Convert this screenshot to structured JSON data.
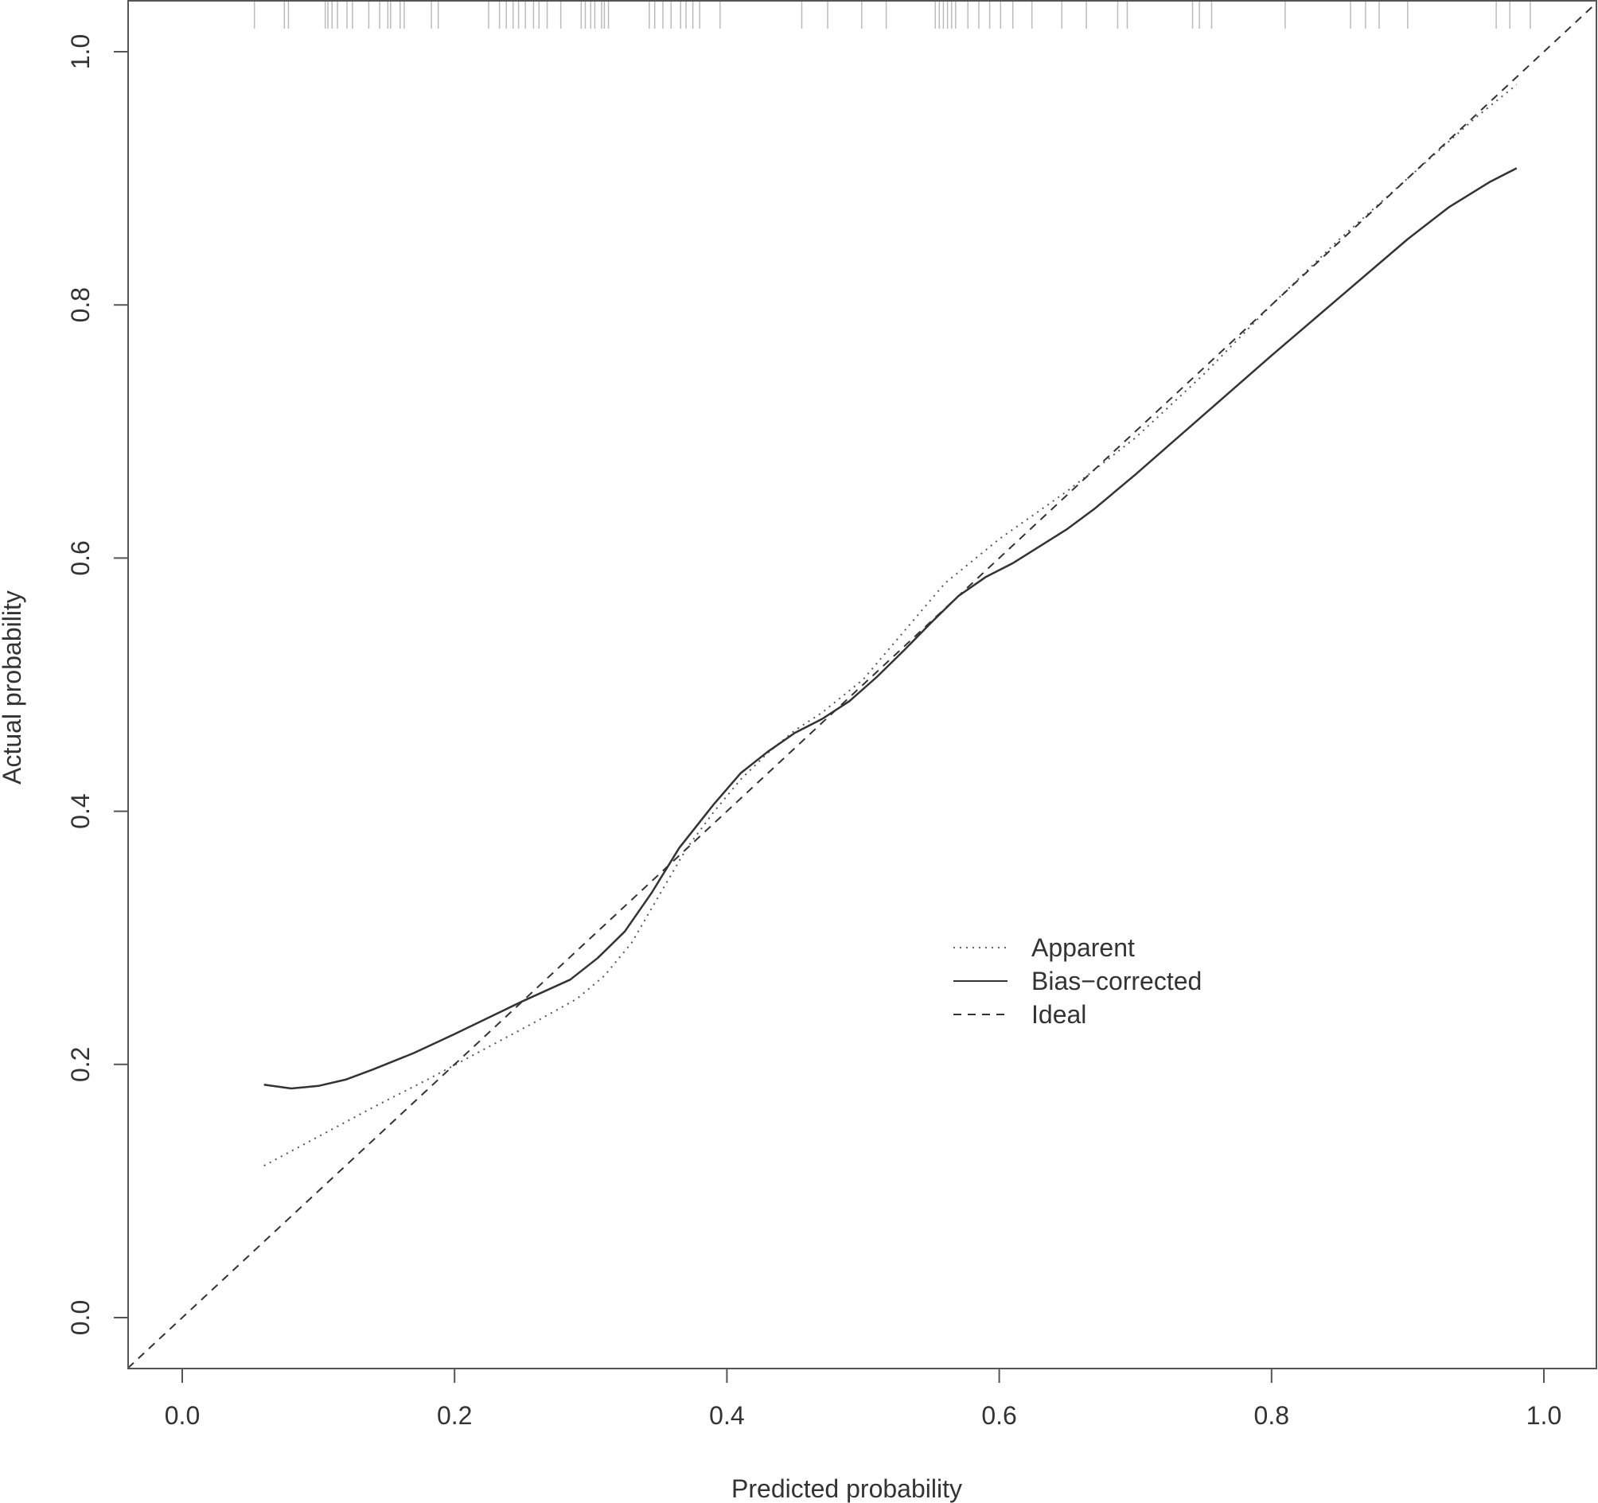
{
  "chart_data": {
    "type": "line",
    "title": "",
    "xlabel": "Predicted probability",
    "ylabel": "Actual probability",
    "xlim": [
      -0.04,
      1.04
    ],
    "ylim": [
      -0.04,
      1.04
    ],
    "x_ticks": [
      "0.0",
      "0.2",
      "0.4",
      "0.6",
      "0.8",
      "1.0"
    ],
    "y_ticks": [
      "0.0",
      "0.2",
      "0.4",
      "0.6",
      "0.8",
      "1.0"
    ],
    "grid": false,
    "legend_position": "center-right",
    "legend": [
      {
        "label": "Apparent",
        "style": "dotted"
      },
      {
        "label": "Bias−corrected",
        "style": "solid"
      },
      {
        "label": "Ideal",
        "style": "dashed"
      }
    ],
    "series": [
      {
        "name": "Apparent",
        "style": "dotted",
        "color": "#555555",
        "x": [
          0.06,
          0.1,
          0.14,
          0.18,
          0.22,
          0.26,
          0.29,
          0.31,
          0.33,
          0.35,
          0.37,
          0.39,
          0.41,
          0.43,
          0.45,
          0.47,
          0.5,
          0.53,
          0.56,
          0.6,
          0.65,
          0.7,
          0.75,
          0.8,
          0.85,
          0.9,
          0.95,
          0.98
        ],
        "y": [
          0.12,
          0.143,
          0.166,
          0.188,
          0.211,
          0.234,
          0.252,
          0.27,
          0.296,
          0.333,
          0.37,
          0.399,
          0.425,
          0.446,
          0.464,
          0.478,
          0.504,
          0.542,
          0.58,
          0.615,
          0.653,
          0.695,
          0.745,
          0.8,
          0.852,
          0.9,
          0.948,
          0.974
        ]
      },
      {
        "name": "Bias−corrected",
        "style": "solid",
        "color": "#333333",
        "x": [
          0.06,
          0.08,
          0.1,
          0.12,
          0.14,
          0.17,
          0.2,
          0.25,
          0.285,
          0.305,
          0.325,
          0.345,
          0.365,
          0.39,
          0.41,
          0.43,
          0.45,
          0.47,
          0.49,
          0.51,
          0.53,
          0.55,
          0.57,
          0.59,
          0.61,
          0.65,
          0.67,
          0.7,
          0.75,
          0.8,
          0.85,
          0.9,
          0.93,
          0.96,
          0.98
        ],
        "y": [
          0.184,
          0.181,
          0.183,
          0.188,
          0.196,
          0.209,
          0.224,
          0.25,
          0.267,
          0.284,
          0.305,
          0.336,
          0.371,
          0.405,
          0.43,
          0.447,
          0.462,
          0.473,
          0.487,
          0.506,
          0.527,
          0.549,
          0.57,
          0.585,
          0.596,
          0.623,
          0.639,
          0.666,
          0.713,
          0.76,
          0.806,
          0.852,
          0.877,
          0.897,
          0.908
        ]
      },
      {
        "name": "Ideal",
        "style": "dashed",
        "color": "#333333",
        "x": [
          -0.04,
          1.04
        ],
        "y": [
          -0.04,
          1.04
        ]
      }
    ],
    "rug_x": [
      0.053,
      0.075,
      0.078,
      0.105,
      0.107,
      0.11,
      0.114,
      0.121,
      0.125,
      0.137,
      0.145,
      0.151,
      0.153,
      0.16,
      0.163,
      0.183,
      0.188,
      0.225,
      0.233,
      0.238,
      0.243,
      0.247,
      0.252,
      0.258,
      0.262,
      0.268,
      0.278,
      0.293,
      0.296,
      0.3,
      0.303,
      0.308,
      0.31,
      0.313,
      0.343,
      0.347,
      0.353,
      0.359,
      0.366,
      0.37,
      0.375,
      0.38,
      0.395,
      0.455,
      0.474,
      0.499,
      0.517,
      0.553,
      0.556,
      0.559,
      0.562,
      0.565,
      0.568,
      0.577,
      0.585,
      0.593,
      0.601,
      0.61,
      0.624,
      0.646,
      0.664,
      0.687,
      0.694,
      0.742,
      0.747,
      0.756,
      0.81,
      0.858,
      0.869,
      0.879,
      0.9,
      0.965,
      0.975,
      0.99
    ]
  }
}
